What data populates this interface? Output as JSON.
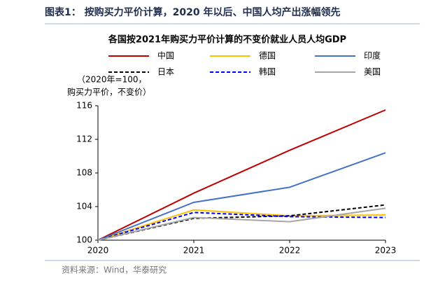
{
  "header": {
    "title": "图表1： 按购买力平价计算，2020 年以后、中国人均产出涨幅领先"
  },
  "chart_data": {
    "type": "line",
    "title": "各国按2021年购买力平价计算的不变价就业人员人均GDP",
    "ylabel": [
      "（2020年=100，",
      "购买力平价，不变价）"
    ],
    "x": [
      2020,
      2021,
      2022,
      2023
    ],
    "xlim": [
      2020,
      2023
    ],
    "xticks": [
      2020,
      2021,
      2022,
      2023
    ],
    "ylim": [
      100,
      116
    ],
    "yticks": [
      100,
      104,
      108,
      112,
      116
    ],
    "grid": false,
    "series": [
      {
        "name": "中国",
        "color": "#c00000",
        "dashed": false,
        "values": [
          100,
          105.6,
          110.7,
          115.5
        ]
      },
      {
        "name": "德国",
        "color": "#ffc000",
        "dashed": false,
        "values": [
          100,
          103.6,
          102.9,
          103.0
        ]
      },
      {
        "name": "印度",
        "color": "#4472c4",
        "dashed": false,
        "values": [
          100,
          104.5,
          106.3,
          110.4
        ]
      },
      {
        "name": "日本",
        "color": "#000000",
        "dashed": true,
        "values": [
          100,
          102.6,
          102.9,
          104.2
        ]
      },
      {
        "name": "韩国",
        "color": "#0000ff",
        "dashed": true,
        "values": [
          100,
          103.3,
          102.8,
          102.7
        ]
      },
      {
        "name": "美国",
        "color": "#a6a6a6",
        "dashed": false,
        "values": [
          100,
          102.7,
          102.2,
          103.8
        ]
      }
    ]
  },
  "source": "资料来源：Wind，华泰研究"
}
